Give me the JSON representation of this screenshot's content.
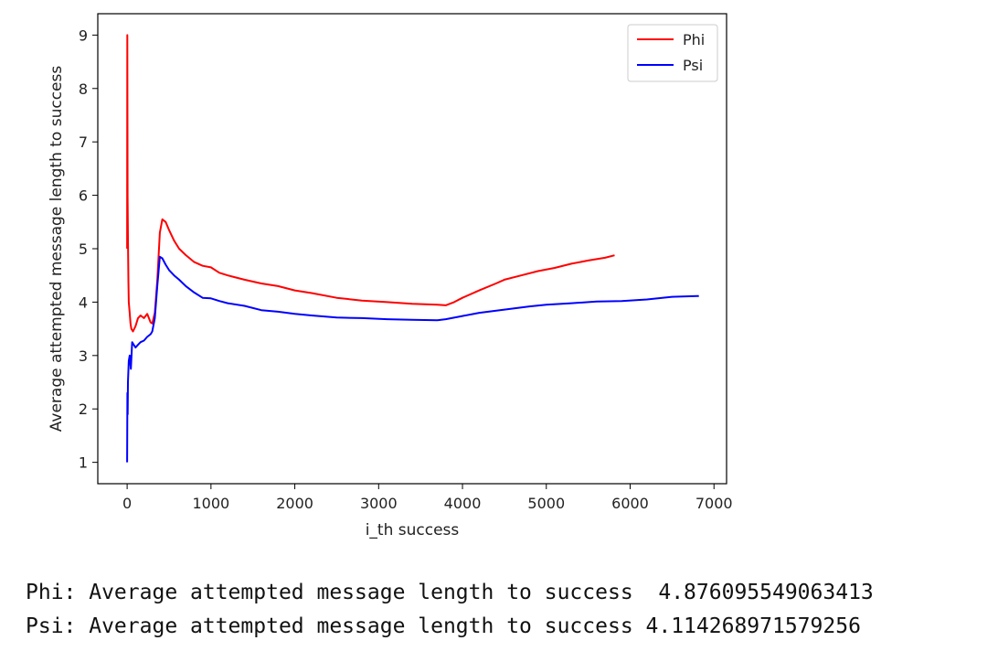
{
  "chart_data": {
    "type": "line",
    "title": "",
    "xlabel": "i_th success",
    "ylabel": "Average attempted message length to success",
    "xlim": [
      -350,
      7150
    ],
    "ylim": [
      0.6,
      9.4
    ],
    "xticks": [
      0,
      1000,
      2000,
      3000,
      4000,
      5000,
      6000,
      7000
    ],
    "yticks": [
      1,
      2,
      3,
      4,
      5,
      6,
      7,
      8,
      9
    ],
    "grid": false,
    "legend_position": "top-right",
    "series": [
      {
        "name": "Phi",
        "color": "#ff0000",
        "points": [
          [
            0,
            5.0
          ],
          [
            2,
            9.0
          ],
          [
            5,
            6.0
          ],
          [
            10,
            5.2
          ],
          [
            15,
            4.4
          ],
          [
            20,
            4.0
          ],
          [
            30,
            3.8
          ],
          [
            40,
            3.6
          ],
          [
            50,
            3.5
          ],
          [
            70,
            3.45
          ],
          [
            100,
            3.55
          ],
          [
            130,
            3.7
          ],
          [
            160,
            3.75
          ],
          [
            200,
            3.7
          ],
          [
            240,
            3.78
          ],
          [
            280,
            3.62
          ],
          [
            300,
            3.6
          ],
          [
            330,
            3.8
          ],
          [
            360,
            4.4
          ],
          [
            390,
            5.3
          ],
          [
            420,
            5.55
          ],
          [
            460,
            5.5
          ],
          [
            500,
            5.35
          ],
          [
            560,
            5.15
          ],
          [
            620,
            5.0
          ],
          [
            700,
            4.88
          ],
          [
            800,
            4.75
          ],
          [
            900,
            4.68
          ],
          [
            1000,
            4.65
          ],
          [
            1100,
            4.55
          ],
          [
            1200,
            4.5
          ],
          [
            1400,
            4.42
          ],
          [
            1600,
            4.35
          ],
          [
            1800,
            4.3
          ],
          [
            2000,
            4.22
          ],
          [
            2200,
            4.17
          ],
          [
            2500,
            4.08
          ],
          [
            2800,
            4.03
          ],
          [
            3100,
            4.0
          ],
          [
            3400,
            3.97
          ],
          [
            3700,
            3.95
          ],
          [
            3800,
            3.94
          ],
          [
            3900,
            4.0
          ],
          [
            4000,
            4.08
          ],
          [
            4200,
            4.22
          ],
          [
            4400,
            4.35
          ],
          [
            4500,
            4.42
          ],
          [
            4700,
            4.5
          ],
          [
            4900,
            4.58
          ],
          [
            5100,
            4.64
          ],
          [
            5300,
            4.72
          ],
          [
            5500,
            4.78
          ],
          [
            5700,
            4.83
          ],
          [
            5815,
            4.876095549063413
          ]
        ]
      },
      {
        "name": "Psi",
        "color": "#0000ff",
        "points": [
          [
            0,
            1.0
          ],
          [
            3,
            2.3
          ],
          [
            6,
            1.9
          ],
          [
            10,
            2.5
          ],
          [
            20,
            2.9
          ],
          [
            30,
            3.0
          ],
          [
            45,
            2.75
          ],
          [
            60,
            3.25
          ],
          [
            80,
            3.2
          ],
          [
            100,
            3.15
          ],
          [
            130,
            3.2
          ],
          [
            160,
            3.25
          ],
          [
            200,
            3.28
          ],
          [
            240,
            3.35
          ],
          [
            280,
            3.4
          ],
          [
            300,
            3.45
          ],
          [
            330,
            3.7
          ],
          [
            360,
            4.3
          ],
          [
            390,
            4.85
          ],
          [
            420,
            4.82
          ],
          [
            460,
            4.7
          ],
          [
            500,
            4.6
          ],
          [
            560,
            4.5
          ],
          [
            620,
            4.42
          ],
          [
            700,
            4.3
          ],
          [
            800,
            4.18
          ],
          [
            900,
            4.08
          ],
          [
            1000,
            4.07
          ],
          [
            1100,
            4.02
          ],
          [
            1200,
            3.98
          ],
          [
            1400,
            3.93
          ],
          [
            1600,
            3.85
          ],
          [
            1800,
            3.82
          ],
          [
            2000,
            3.78
          ],
          [
            2200,
            3.75
          ],
          [
            2500,
            3.71
          ],
          [
            2800,
            3.7
          ],
          [
            3100,
            3.68
          ],
          [
            3400,
            3.67
          ],
          [
            3700,
            3.66
          ],
          [
            3800,
            3.68
          ],
          [
            4000,
            3.74
          ],
          [
            4200,
            3.8
          ],
          [
            4500,
            3.86
          ],
          [
            4800,
            3.92
          ],
          [
            5000,
            3.95
          ],
          [
            5300,
            3.98
          ],
          [
            5600,
            4.01
          ],
          [
            5900,
            4.02
          ],
          [
            6200,
            4.05
          ],
          [
            6500,
            4.1
          ],
          [
            6820,
            4.114268971579256
          ]
        ]
      }
    ]
  },
  "output_lines": [
    "Phi: Average attempted message length to success  4.876095549063413",
    "Psi: Average attempted message length to success 4.114268971579256"
  ]
}
